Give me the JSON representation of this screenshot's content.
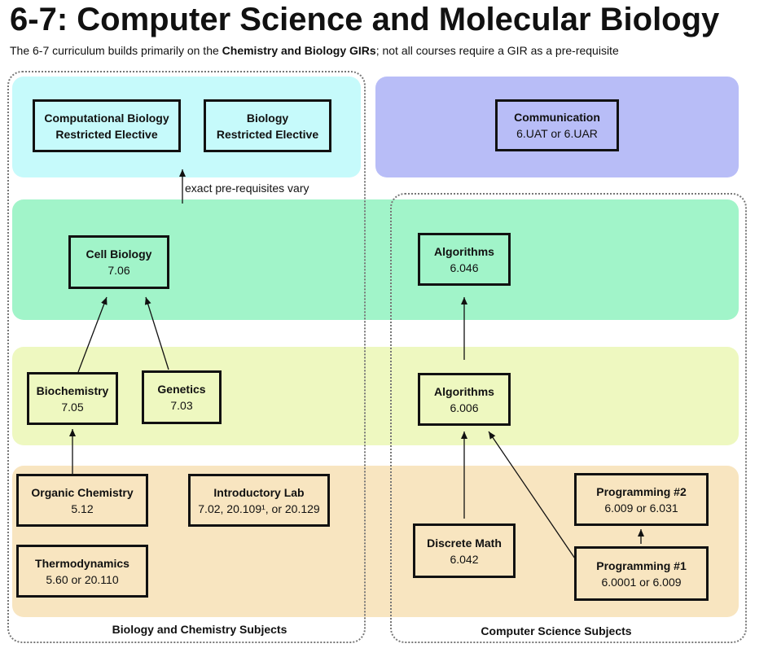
{
  "title": "6-7: Computer Science and Molecular Biology",
  "subtitle": {
    "pre": "The 6-7 curriculum builds primarily on the ",
    "bold": "Chemistry and Biology GIRs",
    "post": "; not all courses require a GIR as a pre-requisite"
  },
  "bands": {
    "restricted": {
      "color": "#c6fafb"
    },
    "communication": {
      "color": "#b8bdf7"
    },
    "advanced": {
      "color": "#a1f4c9"
    },
    "intermediate": {
      "color": "#eef8c0"
    },
    "foundational": {
      "color": "#f8e5c0"
    }
  },
  "groups": {
    "biology_chemistry_label": "Biology and Chemistry Subjects",
    "computer_science_label": "Computer Science Subjects"
  },
  "note": "exact pre-requisites vary",
  "nodes": {
    "comp_bio_elective": {
      "title": "Computational Biology",
      "code": "Restricted Elective"
    },
    "bio_elective": {
      "title": "Biology",
      "code": "Restricted Elective"
    },
    "communication": {
      "title": "Communication",
      "code": "6.UAT or 6.UAR"
    },
    "cell_biology": {
      "title": "Cell Biology",
      "code": "7.06"
    },
    "algorithms_046": {
      "title": "Algorithms",
      "code": "6.046"
    },
    "biochemistry": {
      "title": "Biochemistry",
      "code": "7.05"
    },
    "genetics": {
      "title": "Genetics",
      "code": "7.03"
    },
    "algorithms_006": {
      "title": "Algorithms",
      "code": "6.006"
    },
    "organic_chemistry": {
      "title": "Organic Chemistry",
      "code": "5.12"
    },
    "intro_lab": {
      "title": "Introductory Lab",
      "code": "7.02, 20.109¹, or 20.129"
    },
    "thermodynamics": {
      "title": "Thermodynamics",
      "code": "5.60 or 20.110"
    },
    "programming_2": {
      "title": "Programming #2",
      "code": "6.009 or 6.031"
    },
    "discrete_math": {
      "title": "Discrete Math",
      "code": "6.042"
    },
    "programming_1": {
      "title": "Programming #1",
      "code": "6.0001 or 6.009"
    }
  },
  "edges": [
    {
      "from": "Biochemistry 7.05",
      "to": "Cell Biology 7.06"
    },
    {
      "from": "Genetics 7.03",
      "to": "Cell Biology 7.06"
    },
    {
      "from": "Organic Chemistry 5.12",
      "to": "Biochemistry 7.05"
    },
    {
      "from": "Cell Biology band",
      "to": "Restricted Electives"
    },
    {
      "from": "Algorithms 6.006",
      "to": "Algorithms 6.046"
    },
    {
      "from": "Discrete Math 6.042",
      "to": "Algorithms 6.006"
    },
    {
      "from": "Programming #1",
      "to": "Algorithms 6.006"
    },
    {
      "from": "Programming #1",
      "to": "Programming #2"
    }
  ]
}
